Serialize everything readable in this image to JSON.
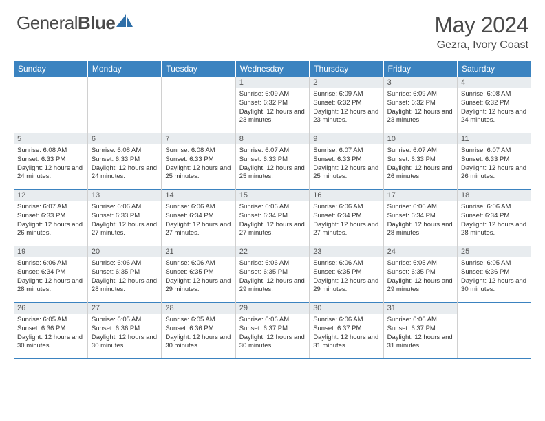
{
  "logo": {
    "word1": "General",
    "word2": "Blue"
  },
  "title": "May 2024",
  "location": "Gezra, Ivory Coast",
  "colors": {
    "header_bg": "#3b83c0",
    "header_text": "#ffffff",
    "daynum_bg": "#e8ecef",
    "border_row": "#3b83c0",
    "border_col": "#d0d0d0",
    "text": "#333333",
    "title_text": "#4a4a4a"
  },
  "daynames": [
    "Sunday",
    "Monday",
    "Tuesday",
    "Wednesday",
    "Thursday",
    "Friday",
    "Saturday"
  ],
  "weeks": [
    [
      null,
      null,
      null,
      {
        "d": "1",
        "sr": "6:09 AM",
        "ss": "6:32 PM",
        "dl": "12 hours and 23 minutes."
      },
      {
        "d": "2",
        "sr": "6:09 AM",
        "ss": "6:32 PM",
        "dl": "12 hours and 23 minutes."
      },
      {
        "d": "3",
        "sr": "6:09 AM",
        "ss": "6:32 PM",
        "dl": "12 hours and 23 minutes."
      },
      {
        "d": "4",
        "sr": "6:08 AM",
        "ss": "6:32 PM",
        "dl": "12 hours and 24 minutes."
      }
    ],
    [
      {
        "d": "5",
        "sr": "6:08 AM",
        "ss": "6:33 PM",
        "dl": "12 hours and 24 minutes."
      },
      {
        "d": "6",
        "sr": "6:08 AM",
        "ss": "6:33 PM",
        "dl": "12 hours and 24 minutes."
      },
      {
        "d": "7",
        "sr": "6:08 AM",
        "ss": "6:33 PM",
        "dl": "12 hours and 25 minutes."
      },
      {
        "d": "8",
        "sr": "6:07 AM",
        "ss": "6:33 PM",
        "dl": "12 hours and 25 minutes."
      },
      {
        "d": "9",
        "sr": "6:07 AM",
        "ss": "6:33 PM",
        "dl": "12 hours and 25 minutes."
      },
      {
        "d": "10",
        "sr": "6:07 AM",
        "ss": "6:33 PM",
        "dl": "12 hours and 26 minutes."
      },
      {
        "d": "11",
        "sr": "6:07 AM",
        "ss": "6:33 PM",
        "dl": "12 hours and 26 minutes."
      }
    ],
    [
      {
        "d": "12",
        "sr": "6:07 AM",
        "ss": "6:33 PM",
        "dl": "12 hours and 26 minutes."
      },
      {
        "d": "13",
        "sr": "6:06 AM",
        "ss": "6:33 PM",
        "dl": "12 hours and 27 minutes."
      },
      {
        "d": "14",
        "sr": "6:06 AM",
        "ss": "6:34 PM",
        "dl": "12 hours and 27 minutes."
      },
      {
        "d": "15",
        "sr": "6:06 AM",
        "ss": "6:34 PM",
        "dl": "12 hours and 27 minutes."
      },
      {
        "d": "16",
        "sr": "6:06 AM",
        "ss": "6:34 PM",
        "dl": "12 hours and 27 minutes."
      },
      {
        "d": "17",
        "sr": "6:06 AM",
        "ss": "6:34 PM",
        "dl": "12 hours and 28 minutes."
      },
      {
        "d": "18",
        "sr": "6:06 AM",
        "ss": "6:34 PM",
        "dl": "12 hours and 28 minutes."
      }
    ],
    [
      {
        "d": "19",
        "sr": "6:06 AM",
        "ss": "6:34 PM",
        "dl": "12 hours and 28 minutes."
      },
      {
        "d": "20",
        "sr": "6:06 AM",
        "ss": "6:35 PM",
        "dl": "12 hours and 28 minutes."
      },
      {
        "d": "21",
        "sr": "6:06 AM",
        "ss": "6:35 PM",
        "dl": "12 hours and 29 minutes."
      },
      {
        "d": "22",
        "sr": "6:06 AM",
        "ss": "6:35 PM",
        "dl": "12 hours and 29 minutes."
      },
      {
        "d": "23",
        "sr": "6:06 AM",
        "ss": "6:35 PM",
        "dl": "12 hours and 29 minutes."
      },
      {
        "d": "24",
        "sr": "6:05 AM",
        "ss": "6:35 PM",
        "dl": "12 hours and 29 minutes."
      },
      {
        "d": "25",
        "sr": "6:05 AM",
        "ss": "6:36 PM",
        "dl": "12 hours and 30 minutes."
      }
    ],
    [
      {
        "d": "26",
        "sr": "6:05 AM",
        "ss": "6:36 PM",
        "dl": "12 hours and 30 minutes."
      },
      {
        "d": "27",
        "sr": "6:05 AM",
        "ss": "6:36 PM",
        "dl": "12 hours and 30 minutes."
      },
      {
        "d": "28",
        "sr": "6:05 AM",
        "ss": "6:36 PM",
        "dl": "12 hours and 30 minutes."
      },
      {
        "d": "29",
        "sr": "6:06 AM",
        "ss": "6:37 PM",
        "dl": "12 hours and 30 minutes."
      },
      {
        "d": "30",
        "sr": "6:06 AM",
        "ss": "6:37 PM",
        "dl": "12 hours and 31 minutes."
      },
      {
        "d": "31",
        "sr": "6:06 AM",
        "ss": "6:37 PM",
        "dl": "12 hours and 31 minutes."
      },
      null
    ]
  ],
  "labels": {
    "sunrise": "Sunrise:",
    "sunset": "Sunset:",
    "daylight": "Daylight:"
  }
}
